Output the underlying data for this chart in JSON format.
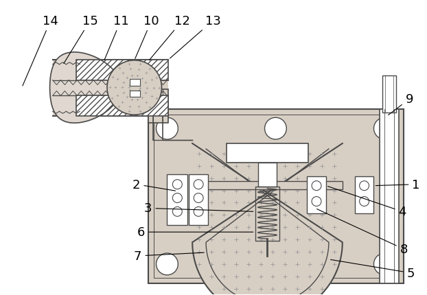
{
  "bg": "#ffffff",
  "lc": "#4a4a4a",
  "fill_sandy": "#d8cfc4",
  "fill_white": "#ffffff",
  "fill_hatched": "#e8e0d8",
  "figsize": [
    6.22,
    4.31
  ],
  "dpi": 100
}
